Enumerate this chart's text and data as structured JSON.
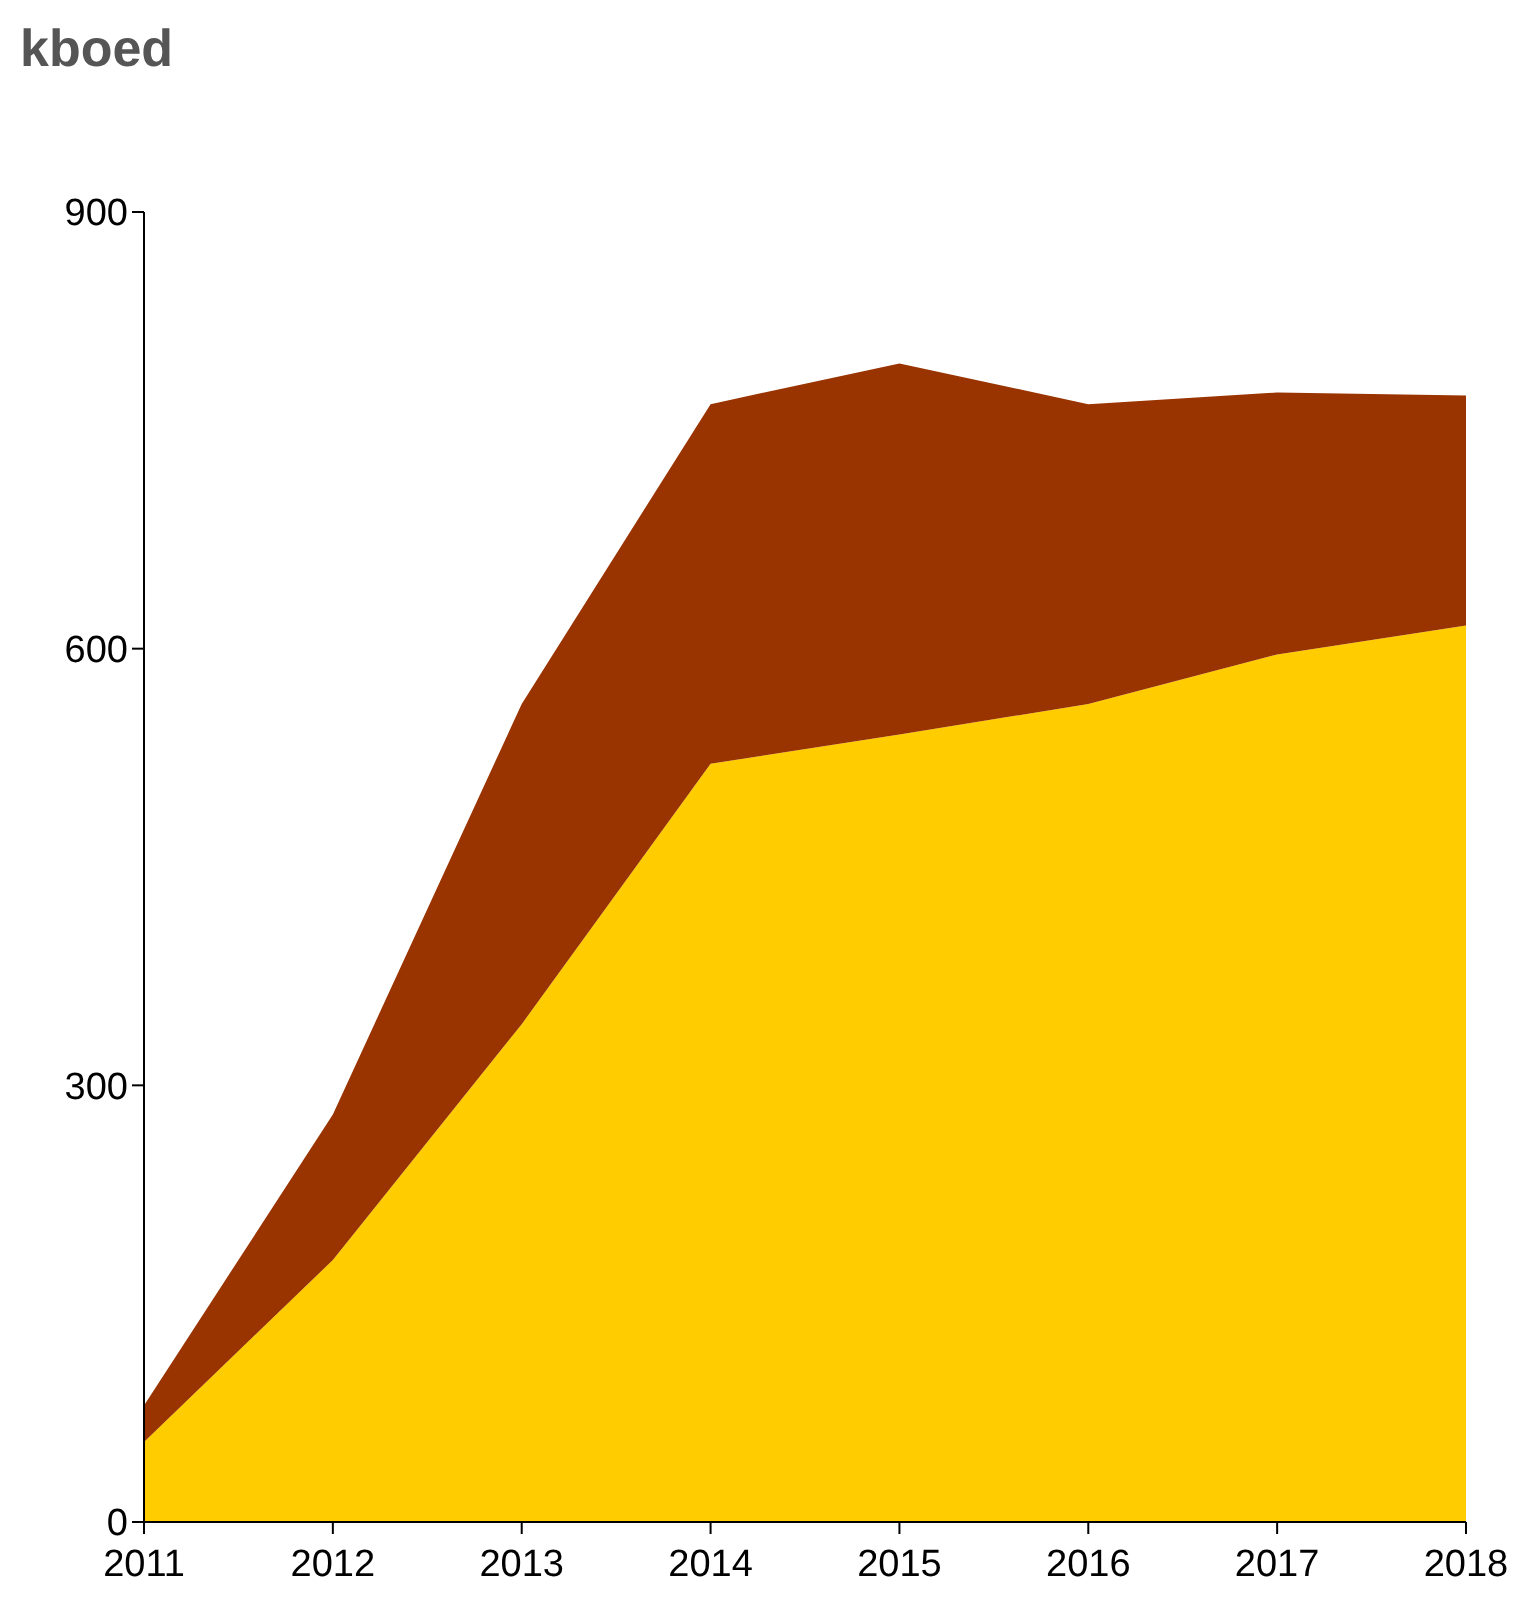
{
  "chart_data": {
    "type": "area",
    "title": "kboed",
    "stacked": true,
    "x": [
      2011,
      2012,
      2013,
      2014,
      2015,
      2016,
      2017,
      2018
    ],
    "xlim": [
      2011,
      2018
    ],
    "xticks": [
      2011,
      2012,
      2013,
      2014,
      2015,
      2016,
      2017,
      2018
    ],
    "ylim": [
      0,
      900
    ],
    "yticks": [
      0,
      300,
      600,
      900
    ],
    "grid": false,
    "series": [
      {
        "color": "#ffcc00",
        "values": [
          55,
          180,
          342,
          521,
          541,
          562,
          596,
          616
        ]
      },
      {
        "color": "#993300",
        "values": [
          25,
          100,
          220,
          247,
          255,
          206,
          180,
          158
        ]
      }
    ]
  }
}
